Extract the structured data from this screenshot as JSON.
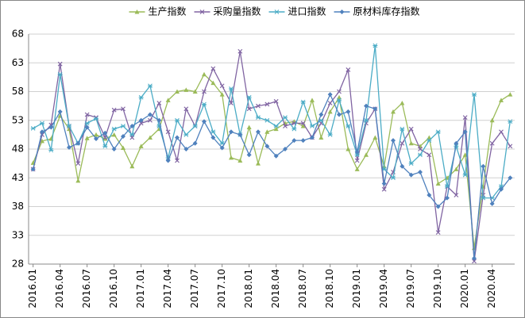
{
  "chart_data": {
    "type": "line",
    "categories": [
      "2016.01",
      null,
      null,
      "2016.04",
      null,
      null,
      "2016.07",
      null,
      null,
      "2016.10",
      null,
      null,
      "2017.01",
      null,
      null,
      "2017.04",
      null,
      null,
      "2017.07",
      null,
      null,
      "2017.10",
      null,
      null,
      "2018.01",
      null,
      null,
      "2018.04",
      null,
      null,
      "2018.07",
      null,
      null,
      "2018.10",
      null,
      null,
      "2019.01",
      null,
      null,
      "2019.04",
      null,
      null,
      "2019.07",
      null,
      null,
      "2019.10",
      null,
      null,
      "2020.01",
      null,
      null,
      "2020.04",
      null,
      null
    ],
    "series": [
      {
        "name": "生产指数",
        "color": "#9bbb59",
        "values": [
          45.6,
          49.4,
          49.8,
          53.8,
          51.5,
          42.5,
          49.9,
          50.5,
          49.8,
          50.5,
          48.2,
          45.0,
          48.5,
          50.0,
          51.5,
          56.5,
          58.0,
          58.3,
          58.0,
          61.0,
          59.5,
          57.5,
          46.5,
          46.0,
          51.8,
          45.5,
          51.0,
          51.5,
          52.5,
          52.8,
          52.0,
          56.5,
          50.0,
          54.5,
          57.0,
          48.0,
          44.5,
          47.0,
          50.0,
          45.0,
          54.5,
          56.0,
          49.0,
          48.5,
          50.0,
          42.0,
          43.0,
          44.5,
          47.0,
          30.8,
          41.5,
          53.0,
          56.5,
          57.5
        ]
      },
      {
        "name": "采购量指数",
        "color": "#8064a2",
        "values": [
          44.5,
          50.5,
          52.2,
          62.8,
          52.0,
          45.5,
          54.0,
          53.5,
          50.0,
          54.8,
          55.0,
          50.0,
          52.5,
          53.0,
          56.0,
          51.0,
          46.0,
          55.0,
          52.0,
          58.0,
          62.0,
          59.0,
          56.0,
          65.0,
          55.0,
          55.5,
          55.8,
          56.3,
          52.0,
          52.5,
          52.5,
          50.0,
          52.5,
          56.0,
          58.0,
          61.8,
          46.0,
          52.5,
          55.0,
          41.0,
          44.0,
          49.0,
          51.5,
          48.0,
          47.0,
          33.5,
          41.5,
          40.0,
          53.5,
          28.5,
          40.0,
          49.0,
          51.0,
          48.5
        ]
      },
      {
        "name": "进口指数",
        "color": "#4bacc6",
        "values": [
          51.6,
          52.5,
          47.8,
          61.0,
          52.0,
          49.0,
          52.5,
          53.3,
          48.5,
          51.5,
          52.0,
          50.5,
          57.0,
          59.0,
          52.0,
          46.5,
          53.0,
          50.5,
          52.0,
          55.8,
          51.0,
          49.0,
          58.5,
          50.5,
          57.0,
          53.5,
          53.0,
          52.0,
          53.5,
          51.5,
          56.2,
          52.0,
          53.0,
          50.5,
          56.5,
          52.0,
          47.0,
          53.0,
          66.0,
          44.5,
          43.0,
          51.5,
          45.5,
          47.0,
          49.5,
          51.0,
          41.5,
          48.5,
          43.5,
          57.5,
          39.5,
          39.5,
          41.5,
          52.8
        ]
      },
      {
        "name": "原材料库存指数",
        "color": "#4f81bd",
        "values": [
          44.5,
          51.0,
          51.8,
          54.5,
          48.3,
          49.0,
          51.8,
          49.8,
          50.8,
          48.0,
          50.2,
          52.0,
          53.0,
          54.0,
          53.0,
          46.0,
          50.0,
          48.0,
          49.0,
          52.8,
          50.0,
          48.2,
          51.0,
          50.5,
          47.0,
          51.0,
          48.5,
          46.8,
          48.0,
          49.5,
          49.5,
          50.0,
          54.0,
          57.5,
          54.0,
          54.5,
          47.5,
          55.5,
          55.0,
          42.0,
          49.5,
          45.0,
          43.5,
          44.0,
          40.0,
          38.0,
          39.5,
          49.0,
          51.0,
          29.0,
          45.0,
          38.5,
          41.0,
          43.0
        ]
      }
    ],
    "ylim": [
      28,
      68
    ],
    "yticks": [
      28,
      33,
      38,
      43,
      48,
      53,
      58,
      63,
      68
    ],
    "grid": true,
    "legend": "top"
  }
}
